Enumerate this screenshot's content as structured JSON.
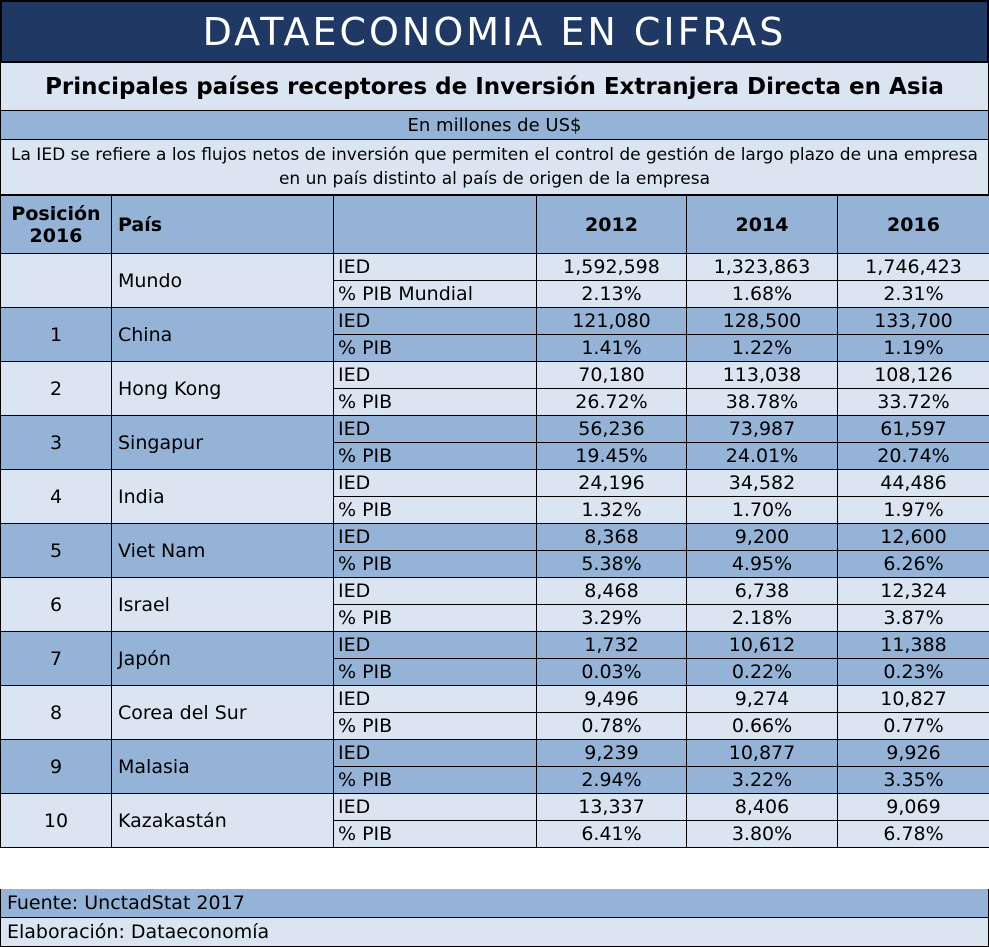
{
  "banner": "DATAECONOMIA EN CIFRAS",
  "title": "Principales países receptores de Inversión Extranjera Directa en Asia",
  "unit": "En millones de US$",
  "note": "La IED se refiere a los flujos netos de inversión que permiten el control de gestión de largo plazo de una empresa en un país distinto al país de origen de la empresa",
  "chart_data": {
    "type": "table",
    "headers": {
      "position": "Posición 2016",
      "country": "País",
      "metric": "",
      "years": [
        "2012",
        "2014",
        "2016"
      ]
    },
    "rows": [
      {
        "pos": "",
        "country": "Mundo",
        "metrics": [
          {
            "label": "IED",
            "values": [
              "1,592,598",
              "1,323,863",
              "1,746,423"
            ]
          },
          {
            "label": "% PIB Mundial",
            "values": [
              "2.13%",
              "1.68%",
              "2.31%"
            ]
          }
        ]
      },
      {
        "pos": "1",
        "country": "China",
        "metrics": [
          {
            "label": "IED",
            "values": [
              "121,080",
              "128,500",
              "133,700"
            ]
          },
          {
            "label": "% PIB",
            "values": [
              "1.41%",
              "1.22%",
              "1.19%"
            ]
          }
        ]
      },
      {
        "pos": "2",
        "country": "Hong Kong",
        "metrics": [
          {
            "label": "IED",
            "values": [
              "70,180",
              "113,038",
              "108,126"
            ]
          },
          {
            "label": "% PIB",
            "values": [
              "26.72%",
              "38.78%",
              "33.72%"
            ]
          }
        ]
      },
      {
        "pos": "3",
        "country": "Singapur",
        "metrics": [
          {
            "label": "IED",
            "values": [
              "56,236",
              "73,987",
              "61,597"
            ]
          },
          {
            "label": "% PIB",
            "values": [
              "19.45%",
              "24.01%",
              "20.74%"
            ]
          }
        ]
      },
      {
        "pos": "4",
        "country": "India",
        "metrics": [
          {
            "label": "IED",
            "values": [
              "24,196",
              "34,582",
              "44,486"
            ]
          },
          {
            "label": "% PIB",
            "values": [
              "1.32%",
              "1.70%",
              "1.97%"
            ]
          }
        ]
      },
      {
        "pos": "5",
        "country": "Viet Nam",
        "metrics": [
          {
            "label": "IED",
            "values": [
              "8,368",
              "9,200",
              "12,600"
            ]
          },
          {
            "label": "% PIB",
            "values": [
              "5.38%",
              "4.95%",
              "6.26%"
            ]
          }
        ]
      },
      {
        "pos": "6",
        "country": "Israel",
        "metrics": [
          {
            "label": "IED",
            "values": [
              "8,468",
              "6,738",
              "12,324"
            ]
          },
          {
            "label": "% PIB",
            "values": [
              "3.29%",
              "2.18%",
              "3.87%"
            ]
          }
        ]
      },
      {
        "pos": "7",
        "country": "Japón",
        "metrics": [
          {
            "label": "IED",
            "values": [
              "1,732",
              "10,612",
              "11,388"
            ]
          },
          {
            "label": "% PIB",
            "values": [
              "0.03%",
              "0.22%",
              "0.23%"
            ]
          }
        ]
      },
      {
        "pos": "8",
        "country": "Corea del Sur",
        "metrics": [
          {
            "label": "IED",
            "values": [
              "9,496",
              "9,274",
              "10,827"
            ]
          },
          {
            "label": "% PIB",
            "values": [
              "0.78%",
              "0.66%",
              "0.77%"
            ]
          }
        ]
      },
      {
        "pos": "9",
        "country": "Malasia",
        "metrics": [
          {
            "label": "IED",
            "values": [
              "9,239",
              "10,877",
              "9,926"
            ]
          },
          {
            "label": "% PIB",
            "values": [
              "2.94%",
              "3.22%",
              "3.35%"
            ]
          }
        ]
      },
      {
        "pos": "10",
        "country": "Kazakastán",
        "metrics": [
          {
            "label": "IED",
            "values": [
              "13,337",
              "8,406",
              "9,069"
            ]
          },
          {
            "label": "% PIB",
            "values": [
              "6.41%",
              "3.80%",
              "6.78%"
            ]
          }
        ]
      }
    ]
  },
  "footer": {
    "source": "Fuente: UnctadStat 2017",
    "credit": "Elaboración: Dataeconomía"
  },
  "colors": {
    "banner": "#1f3864",
    "light": "#dbe5f1",
    "dark": "#95b3d7"
  }
}
